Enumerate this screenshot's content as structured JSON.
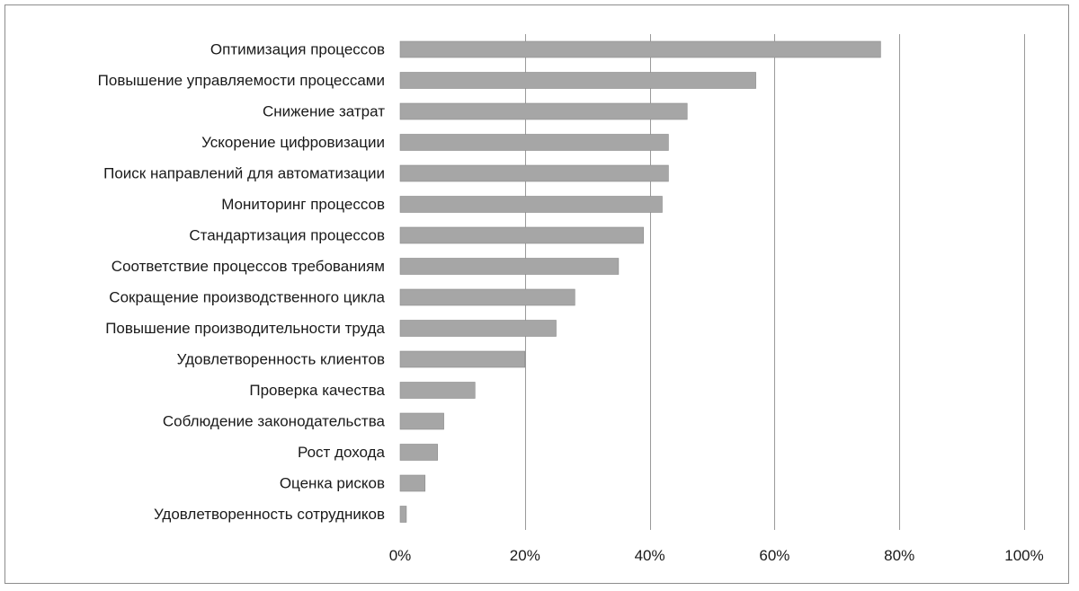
{
  "chart_data": {
    "type": "bar",
    "orientation": "horizontal",
    "title": "",
    "xlabel": "",
    "ylabel": "",
    "categories": [
      "Оптимизация процессов",
      "Повышение управляемости процессами",
      "Снижение затрат",
      "Ускорение цифровизации",
      "Поиск направлений для автоматизации",
      "Мониторинг процессов",
      "Стандартизация процессов",
      "Соответствие процессов требованиям",
      "Сокращение производственного цикла",
      "Повышение производительности труда",
      "Удовлетворенность клиентов",
      "Проверка качества",
      "Соблюдение законодательства",
      "Рост дохода",
      "Оценка рисков",
      "Удовлетворенность сотрудников"
    ],
    "values": [
      77,
      57,
      46,
      43,
      43,
      42,
      39,
      35,
      28,
      25,
      20,
      12,
      7,
      6,
      4,
      1
    ],
    "xlim": [
      0,
      100
    ],
    "xticks": [
      0,
      20,
      40,
      60,
      80,
      100
    ],
    "xtick_labels": [
      "0%",
      "20%",
      "40%",
      "60%",
      "80%",
      "100%"
    ],
    "grid": "vertical",
    "legend": "none",
    "colors": {
      "bar": "#a6a6a6",
      "grid": "#9a9a9a",
      "frame": "#8c8c8c",
      "text": "#1a1a1a"
    }
  }
}
